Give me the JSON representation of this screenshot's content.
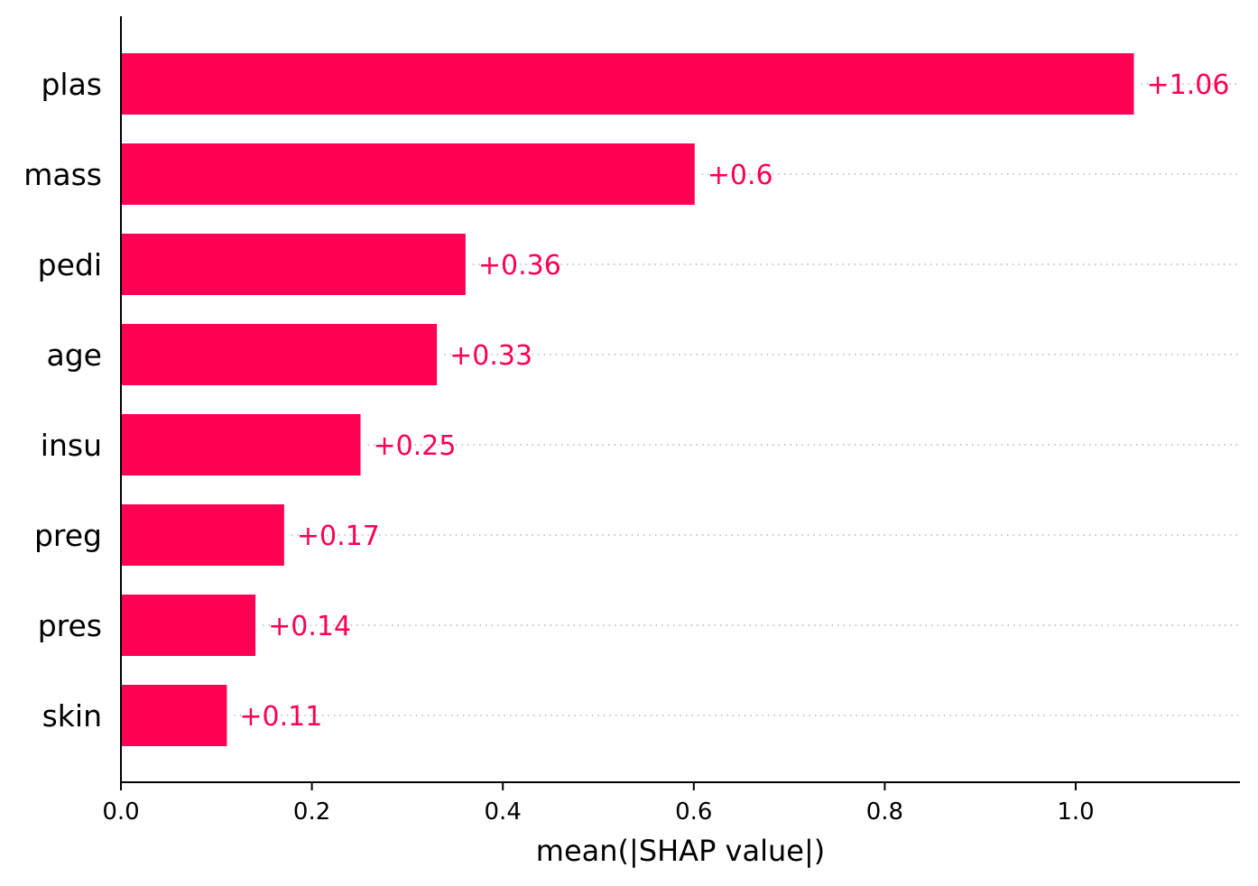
{
  "chart_data": {
    "type": "bar",
    "orientation": "horizontal",
    "categories": [
      "plas",
      "mass",
      "pedi",
      "age",
      "insu",
      "preg",
      "pres",
      "skin"
    ],
    "values": [
      1.06,
      0.6,
      0.36,
      0.33,
      0.25,
      0.17,
      0.14,
      0.11
    ],
    "value_labels": [
      "+1.06",
      "+0.6",
      "+0.36",
      "+0.33",
      "+0.25",
      "+0.17",
      "+0.14",
      "+0.11"
    ],
    "xlabel": "mean(|SHAP value|)",
    "ylabel": "",
    "xlim": [
      0,
      1.17
    ],
    "xticks": [
      0,
      0.2,
      0.4,
      0.6,
      0.8,
      1.0
    ],
    "xtick_labels": [
      "0.0",
      "0.2",
      "0.4",
      "0.6",
      "0.8",
      "1.0"
    ],
    "grid": "dotted horizontal guide lines per bar",
    "bar_color": "#ff0052",
    "label_color": "#ff0052"
  }
}
